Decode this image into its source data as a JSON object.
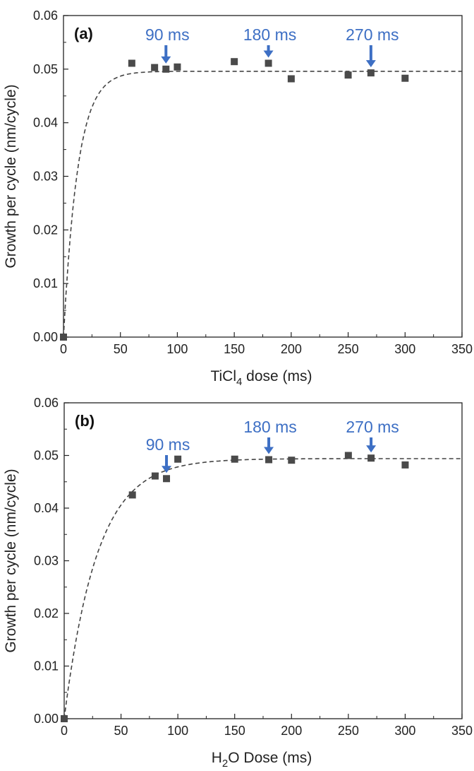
{
  "colors": {
    "marker": "#4a4a4a",
    "fit_line": "#444444",
    "annotation": "#3d6fc4",
    "axis": "#222222"
  },
  "chart_data": [
    {
      "type": "scatter",
      "panel_label": "(a)",
      "xlabel": {
        "main": "TiCl",
        "sub": "4",
        "rest": " dose (ms)"
      },
      "ylabel": "Growth per cycle (nm/cycle)",
      "xlim": [
        0,
        350
      ],
      "ylim": [
        0,
        0.06
      ],
      "xticks": [
        "0",
        "50",
        "100",
        "150",
        "200",
        "250",
        "300",
        "350"
      ],
      "yticks": [
        "0.00",
        "0.01",
        "0.02",
        "0.03",
        "0.04",
        "0.05",
        "0.06"
      ],
      "grid": false,
      "points": {
        "x": [
          0,
          60,
          80,
          90,
          100,
          150,
          180,
          200,
          250,
          270,
          300
        ],
        "y": [
          0.0,
          0.0511,
          0.0503,
          0.05,
          0.0504,
          0.0514,
          0.0511,
          0.0482,
          0.0489,
          0.0493,
          0.0483
        ]
      },
      "fit": {
        "style": "dashed",
        "plateau": 0.0496,
        "tau_ms": 12.5
      },
      "annotations": [
        {
          "text": "90 ms",
          "x": 90
        },
        {
          "text": "180 ms",
          "x": 180
        },
        {
          "text": "270 ms",
          "x": 270
        }
      ]
    },
    {
      "type": "scatter",
      "panel_label": "(b)",
      "xlabel": {
        "main": "H",
        "sub": "2",
        "rest": "O Dose (ms)"
      },
      "ylabel": "Growth per cycle (nm/cycle)",
      "xlim": [
        0,
        350
      ],
      "ylim": [
        0,
        0.06
      ],
      "xticks": [
        "0",
        "50",
        "100",
        "150",
        "200",
        "250",
        "300",
        "350"
      ],
      "yticks": [
        "0.00",
        "0.01",
        "0.02",
        "0.03",
        "0.04",
        "0.05",
        "0.06"
      ],
      "grid": false,
      "points": {
        "x": [
          0,
          60,
          80,
          90,
          100,
          150,
          180,
          200,
          250,
          270,
          300
        ],
        "y": [
          0.0,
          0.0425,
          0.0461,
          0.0456,
          0.0493,
          0.0493,
          0.0492,
          0.0491,
          0.05,
          0.0495,
          0.0482
        ]
      },
      "fit": {
        "style": "dashed",
        "plateau": 0.0494,
        "tau_ms": 29
      },
      "annotations": [
        {
          "text": "90 ms",
          "x": 90
        },
        {
          "text": "180 ms",
          "x": 180
        },
        {
          "text": "270 ms",
          "x": 270
        }
      ]
    }
  ]
}
